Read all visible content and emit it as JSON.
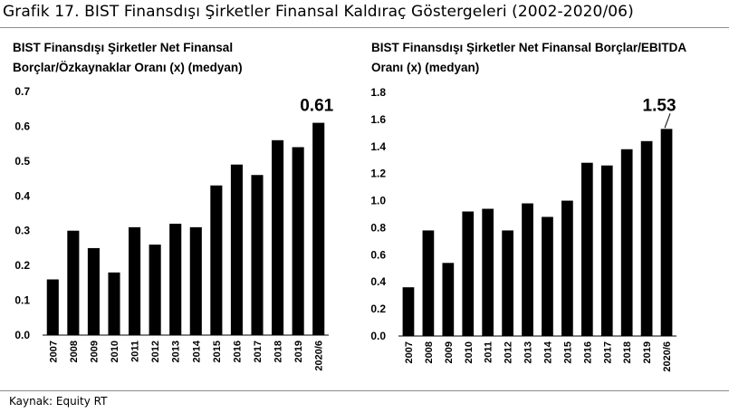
{
  "figure": {
    "title": "Grafik 17. BIST Finansdışı Şirketler Finansal Kaldıraç Göstergeleri (2002-2020/06)",
    "source": "Kaynak: Equity RT"
  },
  "chart_data": [
    {
      "type": "bar",
      "title_lines": [
        "BIST Finansdışı Şirketler Net Finansal",
        "Borçlar/Özkaynaklar Oranı (x) (medyan)"
      ],
      "categories": [
        "2007",
        "2008",
        "2009",
        "2010",
        "2011",
        "2012",
        "2013",
        "2014",
        "2015",
        "2016",
        "2017",
        "2018",
        "2019",
        "2020/6"
      ],
      "values": [
        0.16,
        0.3,
        0.25,
        0.18,
        0.31,
        0.26,
        0.32,
        0.31,
        0.43,
        0.49,
        0.46,
        0.56,
        0.54,
        0.61
      ],
      "ylim": [
        0,
        0.7
      ],
      "yticks": [
        "0.0",
        "0.1",
        "0.2",
        "0.3",
        "0.4",
        "0.5",
        "0.6",
        "0.7"
      ],
      "callout": "0.61",
      "bar_color": "#000000",
      "grid": false
    },
    {
      "type": "bar",
      "title_lines": [
        "BIST Finansdışı Şirketler Net Finansal Borçlar/EBITDA",
        "Oranı (x) (medyan)"
      ],
      "categories": [
        "2007",
        "2008",
        "2009",
        "2010",
        "2011",
        "2012",
        "2013",
        "2014",
        "2015",
        "2016",
        "2017",
        "2018",
        "2019",
        "2020/6"
      ],
      "values": [
        0.36,
        0.78,
        0.54,
        0.92,
        0.94,
        0.78,
        0.98,
        0.88,
        1.0,
        1.28,
        1.26,
        1.38,
        1.44,
        1.53
      ],
      "ylim": [
        0,
        1.8
      ],
      "yticks": [
        "0.0",
        "0.2",
        "0.4",
        "0.6",
        "0.8",
        "1.0",
        "1.2",
        "1.4",
        "1.6",
        "1.8"
      ],
      "callout": "1.53",
      "bar_color": "#000000",
      "grid": false
    }
  ]
}
